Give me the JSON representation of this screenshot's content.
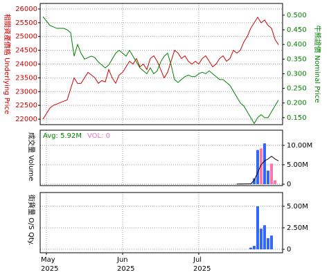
{
  "chart_data": [
    {
      "type": "line",
      "ylabel": "相關資產價格 Underlying Price",
      "ylabel_color": "#cc0000",
      "y2label": "牛熊證價 Nominal Price",
      "y2label_color": "#008000",
      "ylim": [
        21800,
        26200
      ],
      "yticks": [
        22000,
        22500,
        23000,
        23500,
        24000,
        24500,
        25000,
        25500,
        26000
      ],
      "y2lim": [
        0.126,
        0.54
      ],
      "y2ticks": [
        {
          "value": 0.15,
          "label": "0.150"
        },
        {
          "value": 0.2,
          "label": "0.200"
        },
        {
          "value": 0.25,
          "label": "0.250"
        },
        {
          "value": 0.3,
          "label": "0.300"
        },
        {
          "value": 0.35,
          "label": "0.350"
        },
        {
          "value": 0.4,
          "label": "0.400"
        },
        {
          "value": 0.45,
          "label": "0.450"
        },
        {
          "value": 0.5,
          "label": "0.500"
        }
      ],
      "grid": true,
      "series": [
        {
          "color": "#cc0000",
          "axis": "y",
          "values": [
            22000,
            22200,
            22400,
            22500,
            22550,
            22600,
            22650,
            22700,
            23100,
            23500,
            23300,
            23300,
            23500,
            23700,
            23600,
            23500,
            23300,
            23400,
            23350,
            23800,
            23500,
            23300,
            23600,
            23700,
            23900,
            24100,
            24000,
            24200,
            23900,
            24000,
            23800,
            24200,
            24300,
            24100,
            23800,
            23500,
            23700,
            24100,
            24500,
            24400,
            24200,
            24300,
            24100,
            24000,
            24100,
            24000,
            24200,
            24300,
            24100,
            23900,
            24000,
            24200,
            24300,
            24100,
            24200,
            24500,
            24400,
            24500,
            24800,
            25000,
            25300,
            25500,
            25700,
            25500,
            25600,
            25400,
            25300,
            24900,
            24700
          ]
        },
        {
          "color": "#008000",
          "axis": "y2",
          "values": [
            0.495,
            0.48,
            0.465,
            0.46,
            0.455,
            0.455,
            0.455,
            0.45,
            0.44,
            0.36,
            0.4,
            0.37,
            0.35,
            0.355,
            0.36,
            0.355,
            0.34,
            0.33,
            0.32,
            0.33,
            0.35,
            0.37,
            0.38,
            0.37,
            0.36,
            0.38,
            0.36,
            0.34,
            0.32,
            0.31,
            0.3,
            0.32,
            0.3,
            0.31,
            0.34,
            0.36,
            0.37,
            0.33,
            0.28,
            0.27,
            0.28,
            0.29,
            0.295,
            0.29,
            0.29,
            0.3,
            0.305,
            0.3,
            0.31,
            0.3,
            0.29,
            0.28,
            0.28,
            0.27,
            0.26,
            0.24,
            0.22,
            0.2,
            0.19,
            0.17,
            0.15,
            0.13,
            0.15,
            0.16,
            0.15,
            0.15,
            0.17,
            0.19,
            0.21
          ]
        }
      ]
    },
    {
      "type": "bar",
      "ylabel": "成交量 Volume",
      "ylabel_color": "#000000",
      "legend_texts": [
        {
          "text": "Avg: 5.92M",
          "color": "#008000"
        },
        {
          "text": "VOL: 0",
          "color": "#e377c2"
        }
      ],
      "ylim": [
        -360000,
        13900000
      ],
      "yticks": [
        0,
        {
          "value": 5000000,
          "label": "5.00M"
        },
        {
          "value": 10000000,
          "label": "10.00M"
        }
      ],
      "grid": true,
      "series": [
        {
          "type": "bar",
          "values": [
            null,
            null,
            null,
            null,
            null,
            null,
            null,
            null,
            null,
            null,
            null,
            null,
            null,
            null,
            null,
            null,
            null,
            null,
            null,
            null,
            null,
            null,
            null,
            null,
            null,
            null,
            null,
            null,
            null,
            null,
            null,
            null,
            null,
            null,
            null,
            null,
            null,
            null,
            null,
            null,
            null,
            null,
            null,
            null,
            null,
            null,
            null,
            null,
            null,
            null,
            null,
            null,
            null,
            null,
            null,
            null,
            50000,
            60000,
            80000,
            100000,
            150000,
            1500000,
            8800000,
            9200000,
            10500000,
            3500000,
            5300000,
            1000000,
            null
          ],
          "colors": [
            null,
            null,
            null,
            null,
            null,
            null,
            null,
            null,
            null,
            null,
            null,
            null,
            null,
            null,
            null,
            null,
            null,
            null,
            null,
            null,
            null,
            null,
            null,
            null,
            null,
            null,
            null,
            null,
            null,
            null,
            null,
            null,
            null,
            null,
            null,
            null,
            null,
            null,
            null,
            null,
            null,
            null,
            null,
            null,
            null,
            null,
            null,
            null,
            null,
            null,
            null,
            null,
            null,
            null,
            null,
            null,
            "#3366ff",
            "#3366ff",
            "#3366ff",
            "#3366ff",
            "#3366ff",
            "#3366ff",
            "#3366ff",
            "#ff77aa",
            "#3366ff",
            "#3366ff",
            "#ff77aa",
            "#ff77aa",
            null
          ]
        },
        {
          "type": "line",
          "color": "#000000",
          "values": [
            null,
            null,
            null,
            null,
            null,
            null,
            null,
            null,
            null,
            null,
            null,
            null,
            null,
            null,
            null,
            null,
            null,
            null,
            null,
            null,
            null,
            null,
            null,
            null,
            null,
            null,
            null,
            null,
            null,
            null,
            null,
            null,
            null,
            null,
            null,
            null,
            null,
            null,
            null,
            null,
            null,
            null,
            null,
            null,
            null,
            null,
            null,
            null,
            null,
            null,
            null,
            null,
            null,
            null,
            null,
            null,
            50000,
            55000,
            65000,
            75000,
            100000,
            1000000,
            3000000,
            5000000,
            6000000,
            6500000,
            7200000,
            6500000,
            6000000
          ]
        }
      ]
    },
    {
      "type": "bar",
      "ylabel": "街貨量 O/S Qty.",
      "ylabel_color": "#000000",
      "ylim": [
        -400000,
        6600000
      ],
      "yticks": [
        0,
        {
          "value": 2500000,
          "label": "2.50M"
        },
        {
          "value": 5000000,
          "label": "5.00M"
        }
      ],
      "grid": true,
      "categories": [
        null,
        "May",
        null,
        null,
        null,
        null,
        null,
        null,
        null,
        null,
        null,
        null,
        null,
        null,
        null,
        null,
        null,
        null,
        null,
        null,
        null,
        null,
        null,
        "Jun",
        null,
        null,
        null,
        null,
        null,
        null,
        null,
        null,
        null,
        null,
        null,
        null,
        null,
        null,
        null,
        null,
        null,
        null,
        null,
        null,
        null,
        "Jul",
        null,
        null,
        null,
        null,
        null,
        null,
        null,
        null,
        null,
        null,
        null,
        null,
        null,
        null,
        null,
        null,
        null,
        null,
        null,
        null,
        null,
        null,
        null
      ],
      "category_years": [
        null,
        "2025",
        null,
        null,
        null,
        null,
        null,
        null,
        null,
        null,
        null,
        null,
        null,
        null,
        null,
        null,
        null,
        null,
        null,
        null,
        null,
        null,
        null,
        "2025",
        null,
        null,
        null,
        null,
        null,
        null,
        null,
        null,
        null,
        null,
        null,
        null,
        null,
        null,
        null,
        null,
        null,
        null,
        null,
        null,
        null,
        "2025",
        null,
        null,
        null,
        null,
        null,
        null,
        null,
        null,
        null,
        null,
        null,
        null,
        null,
        null,
        null,
        null,
        null,
        null,
        null,
        null,
        null,
        null,
        null
      ],
      "series": [
        {
          "type": "bar",
          "color": "#3366ff",
          "values": [
            null,
            null,
            null,
            null,
            null,
            null,
            null,
            null,
            null,
            null,
            null,
            null,
            null,
            null,
            null,
            null,
            null,
            null,
            null,
            null,
            null,
            null,
            null,
            null,
            null,
            null,
            null,
            null,
            null,
            null,
            null,
            null,
            null,
            null,
            null,
            null,
            null,
            null,
            null,
            null,
            null,
            null,
            null,
            null,
            null,
            null,
            null,
            null,
            null,
            null,
            null,
            null,
            null,
            null,
            null,
            null,
            null,
            null,
            null,
            null,
            200000,
            400000,
            5000000,
            2400000,
            2800000,
            1300000,
            1600000,
            null,
            null
          ]
        }
      ]
    }
  ]
}
